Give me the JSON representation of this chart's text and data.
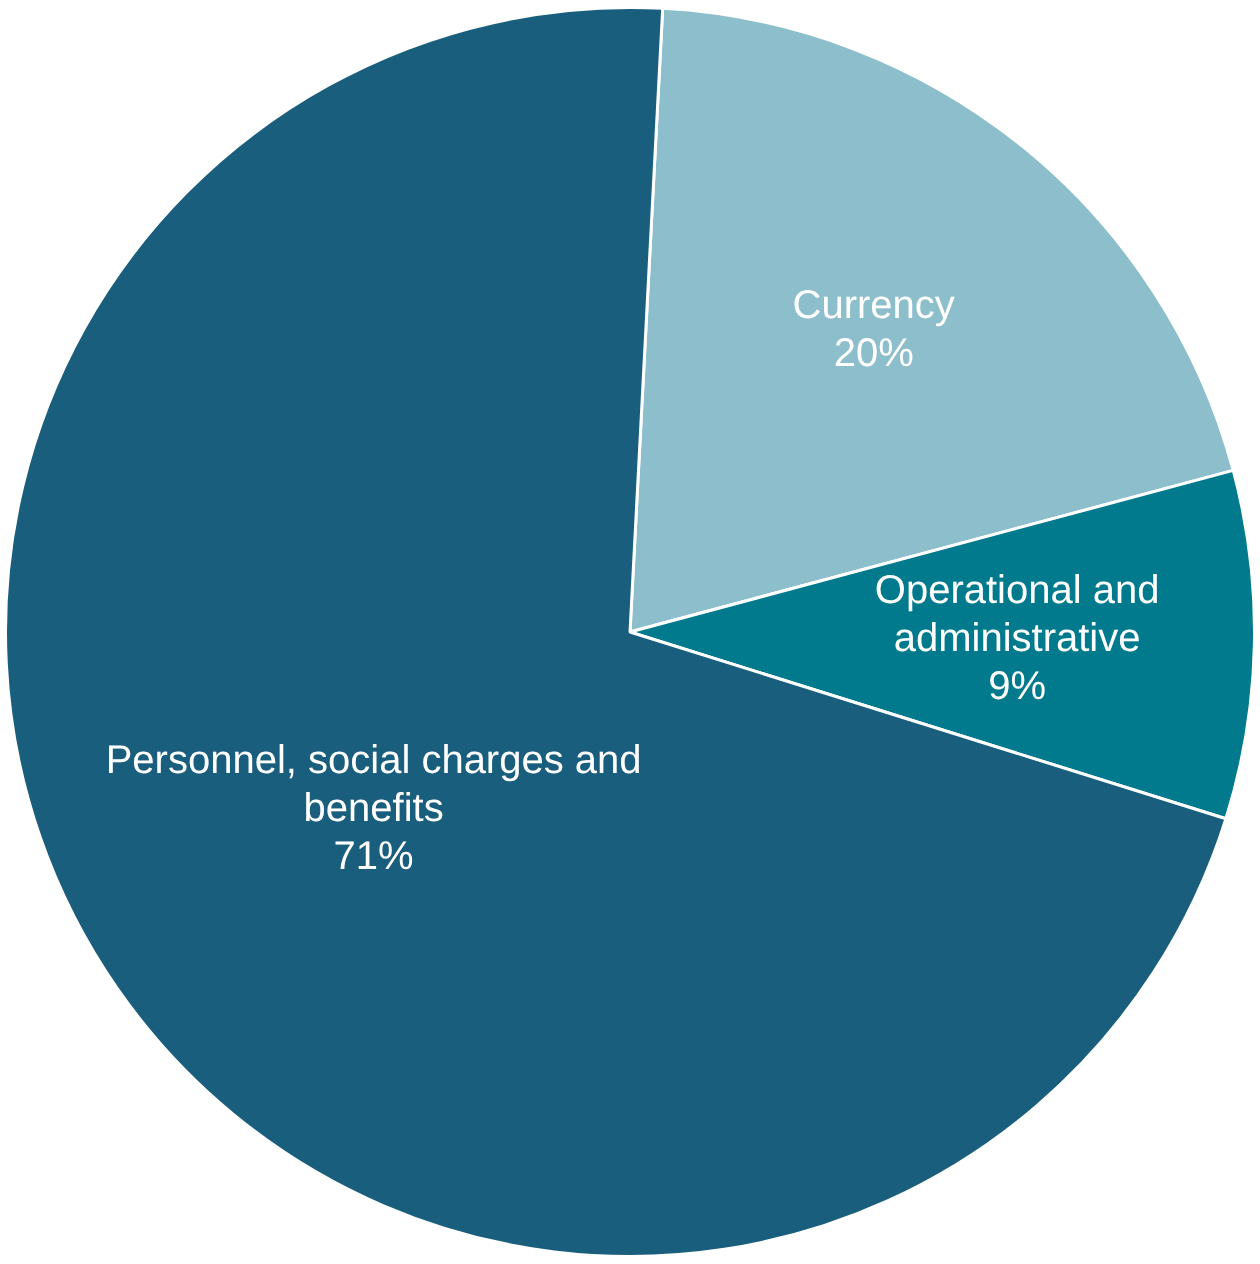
{
  "chart_data": {
    "type": "pie",
    "categories": [
      "Currency",
      "Operational and administrative",
      "Personnel, social charges and benefits"
    ],
    "values": [
      20,
      9,
      71
    ],
    "colors": [
      "#8cbfcb",
      "#007a8c",
      "#1a5e7e"
    ],
    "value_labels": [
      "20%",
      "9%",
      "71%"
    ],
    "legend": false
  }
}
